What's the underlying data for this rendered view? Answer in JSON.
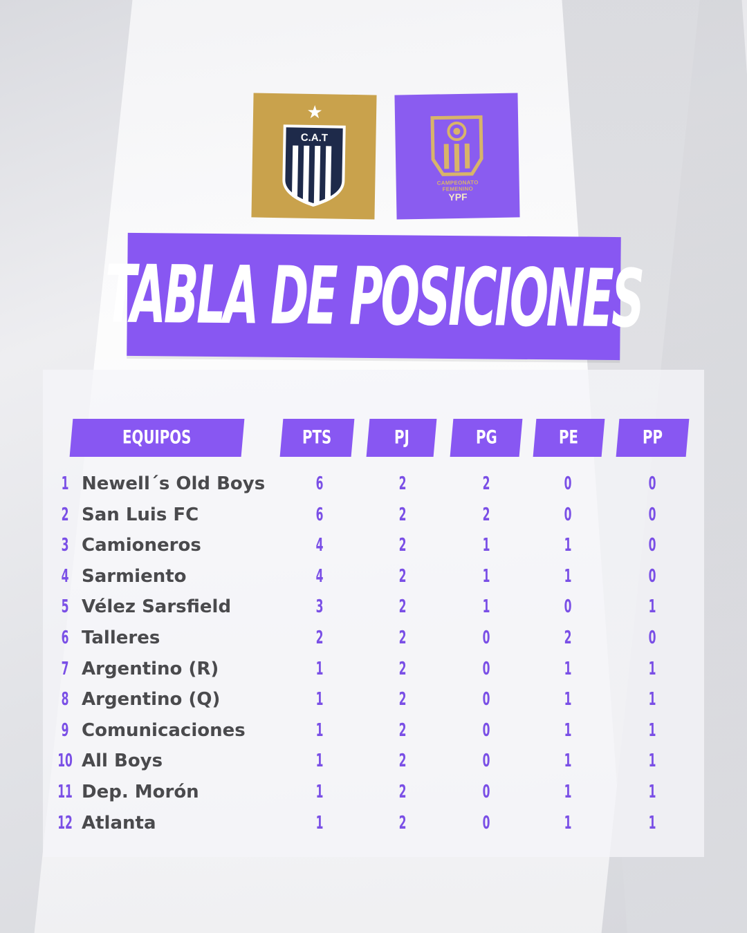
{
  "logos": {
    "club_initials": "C.A.T",
    "competition_line1": "CAMPEONATO",
    "competition_line2": "FEMENINO",
    "competition_line3": "YPF"
  },
  "title": "TABLA DE POSICIONES",
  "colors": {
    "accent": "#8857f2",
    "gold": "#c9a24c",
    "navy": "#1e2a4a",
    "text": "#4a4a4d"
  },
  "headers": {
    "team": "EQUIPOS",
    "pts": "PTS",
    "pj": "PJ",
    "pg": "PG",
    "pe": "PE",
    "pp": "PP"
  },
  "rows": [
    {
      "pos": "1",
      "team": "Newell´s Old Boys",
      "pts": "6",
      "pj": "2",
      "pg": "2",
      "pe": "0",
      "pp": "0"
    },
    {
      "pos": "2",
      "team": "San Luis FC",
      "pts": "6",
      "pj": "2",
      "pg": "2",
      "pe": "0",
      "pp": "0"
    },
    {
      "pos": "3",
      "team": "Camioneros",
      "pts": "4",
      "pj": "2",
      "pg": "1",
      "pe": "1",
      "pp": "0"
    },
    {
      "pos": "4",
      "team": "Sarmiento",
      "pts": "4",
      "pj": "2",
      "pg": "1",
      "pe": "1",
      "pp": "0"
    },
    {
      "pos": "5",
      "team": "Vélez Sarsfield",
      "pts": "3",
      "pj": "2",
      "pg": "1",
      "pe": "0",
      "pp": "1"
    },
    {
      "pos": "6",
      "team": "Talleres",
      "pts": "2",
      "pj": "2",
      "pg": "0",
      "pe": "2",
      "pp": "0"
    },
    {
      "pos": "7",
      "team": "Argentino (R)",
      "pts": "1",
      "pj": "2",
      "pg": "0",
      "pe": "1",
      "pp": "1"
    },
    {
      "pos": "8",
      "team": "Argentino (Q)",
      "pts": "1",
      "pj": "2",
      "pg": "0",
      "pe": "1",
      "pp": "1"
    },
    {
      "pos": "9",
      "team": "Comunicaciones",
      "pts": "1",
      "pj": "2",
      "pg": "0",
      "pe": "1",
      "pp": "1"
    },
    {
      "pos": "10",
      "team": "All Boys",
      "pts": "1",
      "pj": "2",
      "pg": "0",
      "pe": "1",
      "pp": "1"
    },
    {
      "pos": "11",
      "team": "Dep. Morón",
      "pts": "1",
      "pj": "2",
      "pg": "0",
      "pe": "1",
      "pp": "1"
    },
    {
      "pos": "12",
      "team": "Atlanta",
      "pts": "1",
      "pj": "2",
      "pg": "0",
      "pe": "1",
      "pp": "1"
    }
  ]
}
